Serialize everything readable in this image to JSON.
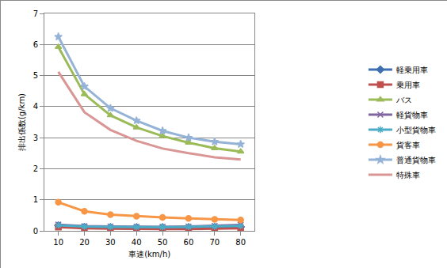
{
  "chart_data": {
    "type": "line",
    "x_label": "車速(km/h)",
    "y_label": "排出係数(g/km)",
    "categories": [
      "10",
      "20",
      "30",
      "40",
      "50",
      "60",
      "70",
      "80"
    ],
    "series": [
      {
        "name": "軽乗用車",
        "color": "#3f6fb0",
        "marker": "diamond",
        "values": [
          0.17,
          0.12,
          0.11,
          0.11,
          0.11,
          0.11,
          0.12,
          0.13
        ]
      },
      {
        "name": "乗用車",
        "color": "#c0504d",
        "marker": "square",
        "values": [
          0.12,
          0.08,
          0.07,
          0.06,
          0.06,
          0.06,
          0.07,
          0.08
        ]
      },
      {
        "name": "バス",
        "color": "#9bbb59",
        "marker": "triangle",
        "values": [
          5.92,
          4.4,
          3.72,
          3.33,
          3.05,
          2.84,
          2.66,
          2.55
        ]
      },
      {
        "name": "軽貨物車",
        "color": "#8064a2",
        "marker": "x",
        "values": [
          0.2,
          0.15,
          0.14,
          0.13,
          0.13,
          0.14,
          0.16,
          0.19
        ]
      },
      {
        "name": "小型貨物車",
        "color": "#4bacc6",
        "marker": "asterisk",
        "values": [
          0.18,
          0.14,
          0.13,
          0.12,
          0.12,
          0.13,
          0.14,
          0.16
        ]
      },
      {
        "name": "貨客車",
        "color": "#f79646",
        "marker": "circle",
        "values": [
          0.92,
          0.63,
          0.52,
          0.47,
          0.43,
          0.4,
          0.37,
          0.35
        ]
      },
      {
        "name": "普通貨物車",
        "color": "#95b3d7",
        "marker": "star",
        "values": [
          6.25,
          4.65,
          3.95,
          3.55,
          3.22,
          3.0,
          2.87,
          2.79
        ]
      },
      {
        "name": "特殊車",
        "color": "#d99694",
        "marker": "none",
        "values": [
          5.12,
          3.82,
          3.25,
          2.9,
          2.65,
          2.5,
          2.37,
          2.3
        ]
      }
    ],
    "ylim": [
      0,
      7
    ],
    "yticks": [
      0,
      1,
      2,
      3,
      4,
      5,
      6,
      7
    ],
    "grid": true,
    "legend": "right"
  }
}
